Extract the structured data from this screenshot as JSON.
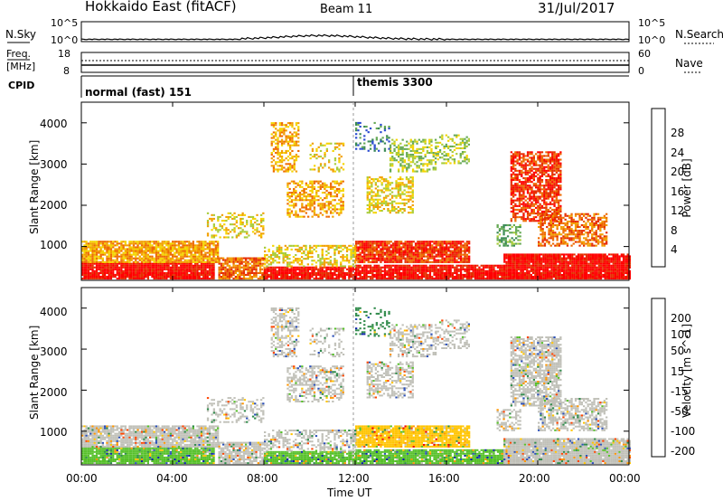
{
  "header": {
    "station": "Hokkaido East (fitACF)",
    "beam": "Beam 11",
    "date": "31/Jul/2017"
  },
  "left_labels": {
    "nsky": "N.Sky",
    "freq": "Freq.",
    "freq_unit": "[MHz]",
    "cpid": "CPID"
  },
  "right_labels": {
    "nsearch": "N.Search",
    "nave": "Nave"
  },
  "noise_axis": {
    "ticks": [
      "10^5",
      "10^0"
    ]
  },
  "freq_axis": {
    "ticks": [
      "18",
      "8"
    ]
  },
  "nave_axis": {
    "ticks": [
      "60",
      "0"
    ]
  },
  "cpid_segments": [
    {
      "label": "normal (fast) 151",
      "start_hour": 0
    },
    {
      "label": "themis 3300",
      "start_hour": 12
    }
  ],
  "chart_data": [
    {
      "type": "heatmap",
      "name": "power",
      "ylabel": "Slant Range [km]",
      "xlabel": "",
      "xlim": [
        0,
        24
      ],
      "ylim": [
        180,
        4500
      ],
      "yticks": [
        "1000",
        "2000",
        "3000",
        "4000"
      ],
      "colorbar": {
        "label": "Power [dB]",
        "ticks": [
          "4",
          "8",
          "12",
          "16",
          "20",
          "24",
          "28"
        ],
        "colors": [
          "#0000ff",
          "#2a4bd0",
          "#3a8a55",
          "#66aa55",
          "#a9cc3a",
          "#f4d400",
          "#f29f00",
          "#ee6a00",
          "#e62e00",
          "#ff0000"
        ]
      }
    },
    {
      "type": "heatmap",
      "name": "velocity",
      "ylabel": "Slant Range [km]",
      "xlabel": "Time UT",
      "xlim": [
        0,
        24
      ],
      "ylim": [
        180,
        4500
      ],
      "yticks": [
        "1000",
        "2000",
        "3000",
        "4000"
      ],
      "xticks": [
        "00:00",
        "04:00",
        "08:00",
        "12:00",
        "16:00",
        "20:00",
        "00:00"
      ],
      "colorbar": {
        "label": "Velocity [m s^-1]",
        "ticks": [
          "200",
          "100",
          "50",
          "15",
          "-15",
          "-50",
          "-100",
          "-200"
        ],
        "colors": [
          "#0b1ea8",
          "#2b4fb8",
          "#2f8a4a",
          "#56c02a",
          "#c0c0b8",
          "#ffc400",
          "#ff9500",
          "#ff4400",
          "#ee0000"
        ]
      }
    }
  ]
}
